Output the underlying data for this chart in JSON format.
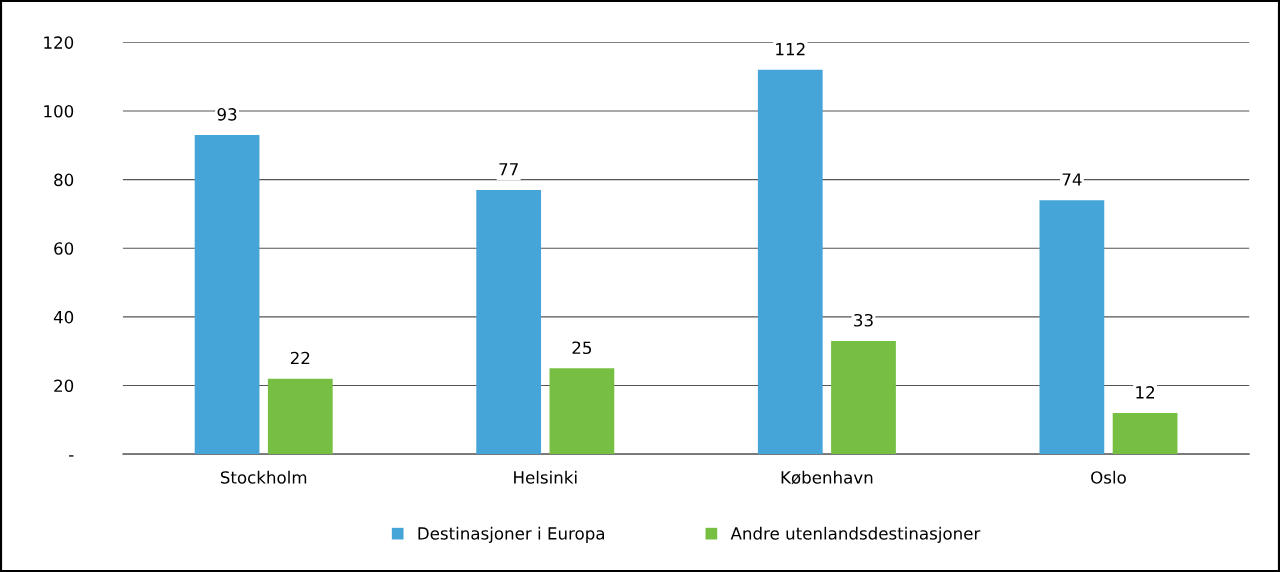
{
  "chart_data": {
    "type": "bar",
    "categories": [
      "Stockholm",
      "Helsinki",
      "København",
      "Oslo"
    ],
    "series": [
      {
        "name": "Destinasjoner i Europa",
        "color": "#45a5d8",
        "values": [
          93,
          77,
          112,
          74
        ]
      },
      {
        "name": "Andre utenlandsdestinasjoner",
        "color": "#77bf43",
        "values": [
          22,
          25,
          33,
          12
        ]
      }
    ],
    "ylim": [
      0,
      120
    ],
    "yticks": [
      {
        "value": 0,
        "label": "-"
      },
      20,
      40,
      60,
      80,
      100,
      120
    ],
    "grid": "y",
    "legend": "bottom",
    "data_labels": true
  }
}
